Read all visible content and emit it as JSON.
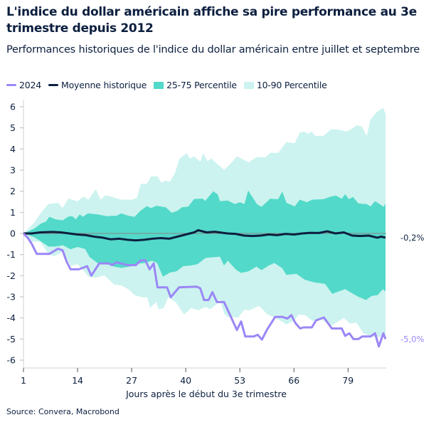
{
  "title": "L'indice du dollar américain affiche sa pire performance au 3e trimestre depuis 2012",
  "subtitle": "Performances historiques de l'indice du dollar américain entre juillet et septembre",
  "source": "Source: Convera, Macrobond",
  "colors": {
    "s2024": "#9b87f5",
    "mean": "#0c1f3f",
    "p2575": "#52d9c9",
    "p1090": "#ccf3ef",
    "zero": "#888888"
  },
  "chart_data": {
    "type": "line",
    "title": "L'indice du dollar américain affiche sa pire performance au 3e trimestre depuis 2012",
    "subtitle": "Performances historiques de l'indice du dollar américain entre juillet et septembre",
    "xlabel": "Jours après le début du 3e trimestre",
    "ylabel": "",
    "xlim": [
      1,
      88
    ],
    "ylim": [
      -6,
      6
    ],
    "xticks": [
      1,
      14,
      27,
      40,
      53,
      66,
      79
    ],
    "yticks": [
      6,
      5,
      4,
      3,
      2,
      1,
      0,
      -1,
      -2,
      -3,
      -4,
      -5,
      -6
    ],
    "grid": false,
    "legend": "top",
    "end_labels": {
      "mean": "-0,2%",
      "s2024": "-5,0%"
    },
    "legend_labels": {
      "s2024": "2024",
      "mean": "Moyenne historique",
      "p2575": "25-75 Percentile",
      "p1090": "10-90 Percentile"
    },
    "bands": {
      "p1090_upper": [
        [
          1,
          0
        ],
        [
          3.5,
          0.5
        ],
        [
          5.3,
          1.0
        ],
        [
          7,
          1.4
        ],
        [
          9.3,
          1.45
        ],
        [
          10.4,
          1.2
        ],
        [
          11.8,
          1.65
        ],
        [
          14,
          1.52
        ],
        [
          15.4,
          1.75
        ],
        [
          16.6,
          1.6
        ],
        [
          18.4,
          2.1
        ],
        [
          19.5,
          1.6
        ],
        [
          20.7,
          1.8
        ],
        [
          22,
          1.75
        ],
        [
          24.4,
          1.6
        ],
        [
          27.2,
          1.6
        ],
        [
          28.3,
          1.7
        ],
        [
          29.2,
          2.35
        ],
        [
          30.6,
          2.35
        ],
        [
          31.7,
          2.7
        ],
        [
          33.2,
          2.7
        ],
        [
          34.2,
          2.4
        ],
        [
          35.1,
          2.5
        ],
        [
          36.2,
          2.45
        ],
        [
          37.4,
          2.85
        ],
        [
          38.5,
          3.55
        ],
        [
          40.2,
          3.8
        ],
        [
          41,
          3.55
        ],
        [
          42,
          3.65
        ],
        [
          43.5,
          3.4
        ],
        [
          44.2,
          3.8
        ],
        [
          45.2,
          3.42
        ],
        [
          46.2,
          3.55
        ],
        [
          47.5,
          3.3
        ],
        [
          49.2,
          3.02
        ],
        [
          50.5,
          3.25
        ],
        [
          52.3,
          3.65
        ],
        [
          55.1,
          3.37
        ],
        [
          57.1,
          3.62
        ],
        [
          59.1,
          3.6
        ],
        [
          60.3,
          3.82
        ],
        [
          62.2,
          3.82
        ],
        [
          64.2,
          4.32
        ],
        [
          66.2,
          4.27
        ],
        [
          67.4,
          4.77
        ],
        [
          68.5,
          4.83
        ],
        [
          69.4,
          4.72
        ],
        [
          70.3,
          4.83
        ],
        [
          71.1,
          4.62
        ],
        [
          73.1,
          4.62
        ],
        [
          74.9,
          4.93
        ],
        [
          76.3,
          4.93
        ],
        [
          78.6,
          4.83
        ],
        [
          79.8,
          4.95
        ],
        [
          81.2,
          5.13
        ],
        [
          82.4,
          5.05
        ],
        [
          83.5,
          4.6
        ],
        [
          84.4,
          5.4
        ],
        [
          85.9,
          5.75
        ],
        [
          87.4,
          5.95
        ],
        [
          88,
          5.67
        ]
      ],
      "p1090_lower": [
        [
          1,
          0
        ],
        [
          3,
          -0.39
        ],
        [
          5,
          -0.39
        ],
        [
          7,
          -0.97
        ],
        [
          8.4,
          -1.08
        ],
        [
          10.5,
          -0.86
        ],
        [
          12.3,
          -1.52
        ],
        [
          14,
          -1.46
        ],
        [
          15.4,
          -1.74
        ],
        [
          16.6,
          -2.05
        ],
        [
          18.4,
          -2.1
        ],
        [
          20.4,
          -1.99
        ],
        [
          22.8,
          -2.42
        ],
        [
          24.5,
          -2.47
        ],
        [
          26.2,
          -2.64
        ],
        [
          27.7,
          -2.92
        ],
        [
          29.7,
          -3.03
        ],
        [
          30.8,
          -3.03
        ],
        [
          31.4,
          -3.53
        ],
        [
          32.9,
          -3.25
        ],
        [
          33.5,
          -3.59
        ],
        [
          34.7,
          -3.53
        ],
        [
          35.8,
          -3.03
        ],
        [
          37.6,
          -3.25
        ],
        [
          39.6,
          -3.84
        ],
        [
          41.3,
          -3.53
        ],
        [
          43,
          -3.64
        ],
        [
          44.8,
          -3.48
        ],
        [
          45.9,
          -3.59
        ],
        [
          47.6,
          -3.33
        ],
        [
          48.2,
          -3.1
        ],
        [
          49.2,
          -3.78
        ],
        [
          50.1,
          -3.95
        ],
        [
          52.6,
          -3.98
        ],
        [
          54.1,
          -3.61
        ],
        [
          55.3,
          -3.64
        ],
        [
          57.6,
          -3.43
        ],
        [
          59.6,
          -3.83
        ],
        [
          62.1,
          -4.05
        ],
        [
          64.2,
          -4.31
        ],
        [
          66.2,
          -4.11
        ],
        [
          67.1,
          -3.83
        ],
        [
          68.8,
          -3.88
        ],
        [
          70.5,
          -4.16
        ],
        [
          72.2,
          -4.0
        ],
        [
          74.9,
          -4.38
        ],
        [
          78,
          -4.0
        ],
        [
          79.5,
          -4.27
        ],
        [
          81,
          -4.22
        ],
        [
          82.7,
          -4.72
        ],
        [
          84.7,
          -4.9
        ],
        [
          86.6,
          -4.9
        ],
        [
          88,
          -4.78
        ]
      ],
      "p2575_upper": [
        [
          1,
          0
        ],
        [
          3.5,
          0.22
        ],
        [
          5.3,
          0.48
        ],
        [
          6.4,
          0.56
        ],
        [
          7.2,
          0.79
        ],
        [
          8.7,
          0.67
        ],
        [
          10.4,
          0.62
        ],
        [
          11.8,
          0.8
        ],
        [
          12.7,
          0.82
        ],
        [
          13.6,
          0.67
        ],
        [
          14.5,
          0.9
        ],
        [
          15.3,
          0.79
        ],
        [
          16.5,
          0.95
        ],
        [
          18.8,
          0.9
        ],
        [
          21.1,
          0.82
        ],
        [
          23.4,
          0.84
        ],
        [
          24.5,
          0.95
        ],
        [
          26.2,
          0.84
        ],
        [
          27.7,
          0.79
        ],
        [
          29.1,
          1.07
        ],
        [
          30.6,
          1.29
        ],
        [
          31.7,
          1.2
        ],
        [
          32.9,
          1.31
        ],
        [
          35.2,
          1.24
        ],
        [
          36.6,
          0.98
        ],
        [
          38,
          1.07
        ],
        [
          39.1,
          1.24
        ],
        [
          40.6,
          1.27
        ],
        [
          42,
          1.63
        ],
        [
          44,
          1.65
        ],
        [
          44.7,
          1.54
        ],
        [
          46.6,
          2.0
        ],
        [
          47.7,
          1.85
        ],
        [
          48.2,
          1.53
        ],
        [
          50.1,
          1.56
        ],
        [
          51.8,
          1.39
        ],
        [
          53,
          1.48
        ],
        [
          54.1,
          1.39
        ],
        [
          55,
          2.03
        ],
        [
          57.1,
          1.39
        ],
        [
          58.2,
          1.26
        ],
        [
          60.3,
          1.64
        ],
        [
          62.2,
          1.62
        ],
        [
          63.2,
          1.98
        ],
        [
          64.2,
          1.45
        ],
        [
          66.2,
          1.28
        ],
        [
          67.4,
          1.6
        ],
        [
          69.1,
          1.48
        ],
        [
          70.4,
          1.6
        ],
        [
          73.1,
          1.62
        ],
        [
          74.9,
          1.75
        ],
        [
          76.1,
          1.79
        ],
        [
          77.5,
          1.64
        ],
        [
          78.3,
          1.86
        ],
        [
          79.2,
          1.62
        ],
        [
          80.2,
          1.73
        ],
        [
          81.5,
          1.42
        ],
        [
          83.5,
          1.39
        ],
        [
          84.4,
          1.28
        ],
        [
          85.5,
          1.53
        ],
        [
          87.6,
          1.26
        ],
        [
          88,
          1.42
        ]
      ],
      "p2575_lower": [
        [
          1,
          0
        ],
        [
          3.5,
          -0.17
        ],
        [
          5.3,
          -0.39
        ],
        [
          7,
          -0.62
        ],
        [
          8.7,
          -0.62
        ],
        [
          10.5,
          -0.56
        ],
        [
          12.3,
          -0.75
        ],
        [
          14,
          -0.64
        ],
        [
          15.8,
          -0.73
        ],
        [
          16.9,
          -1.12
        ],
        [
          18.8,
          -1.4
        ],
        [
          21.1,
          -1.46
        ],
        [
          22.8,
          -1.57
        ],
        [
          24.5,
          -1.63
        ],
        [
          26.5,
          -1.57
        ],
        [
          28.5,
          -1.43
        ],
        [
          30.2,
          -1.4
        ],
        [
          31.9,
          -1.29
        ],
        [
          33.1,
          -1.4
        ],
        [
          34.5,
          -2.05
        ],
        [
          36.2,
          -1.85
        ],
        [
          37.7,
          -1.8
        ],
        [
          39.4,
          -1.55
        ],
        [
          41.1,
          -1.52
        ],
        [
          42.8,
          -1.46
        ],
        [
          44.8,
          -1.16
        ],
        [
          48.2,
          -1.1
        ],
        [
          49.2,
          -1.52
        ],
        [
          50.1,
          -1.29
        ],
        [
          52.1,
          -1.72
        ],
        [
          53.3,
          -1.87
        ],
        [
          55,
          -1.8
        ],
        [
          57,
          -1.57
        ],
        [
          58.2,
          -1.74
        ],
        [
          59.9,
          -1.52
        ],
        [
          61.3,
          -1.4
        ],
        [
          63.2,
          -1.65
        ],
        [
          64.2,
          -1.96
        ],
        [
          66.6,
          -1.91
        ],
        [
          68.6,
          -2.19
        ],
        [
          70.9,
          -2.32
        ],
        [
          73.5,
          -2.39
        ],
        [
          75.2,
          -2.86
        ],
        [
          76.7,
          -2.75
        ],
        [
          78.3,
          -2.64
        ],
        [
          79.8,
          -2.81
        ],
        [
          81.5,
          -3.0
        ],
        [
          83.3,
          -3.15
        ],
        [
          84.7,
          -2.96
        ],
        [
          86.1,
          -2.92
        ],
        [
          87.4,
          -2.64
        ],
        [
          88,
          -2.75
        ]
      ]
    },
    "series": [
      {
        "name": "Moyenne historique",
        "points": [
          [
            1,
            0
          ],
          [
            3,
            0
          ],
          [
            5,
            0.05
          ],
          [
            8,
            0.07
          ],
          [
            10,
            0.05
          ],
          [
            12,
            0
          ],
          [
            14,
            -0.05
          ],
          [
            16,
            -0.08
          ],
          [
            18,
            -0.15
          ],
          [
            20,
            -0.2
          ],
          [
            22,
            -0.28
          ],
          [
            24,
            -0.25
          ],
          [
            26,
            -0.3
          ],
          [
            28,
            -0.33
          ],
          [
            30,
            -0.3
          ],
          [
            32,
            -0.25
          ],
          [
            34,
            -0.22
          ],
          [
            36,
            -0.25
          ],
          [
            38,
            -0.15
          ],
          [
            40,
            -0.05
          ],
          [
            42,
            0.05
          ],
          [
            43,
            0.15
          ],
          [
            45,
            0.05
          ],
          [
            47,
            0.08
          ],
          [
            50,
            0.0
          ],
          [
            52,
            -0.02
          ],
          [
            54,
            -0.1
          ],
          [
            56,
            -0.12
          ],
          [
            58,
            -0.1
          ],
          [
            60,
            -0.05
          ],
          [
            62,
            -0.08
          ],
          [
            64,
            -0.02
          ],
          [
            66,
            -0.05
          ],
          [
            68,
            0
          ],
          [
            70,
            0.03
          ],
          [
            72,
            0.02
          ],
          [
            74,
            0.1
          ],
          [
            76,
            0.0
          ],
          [
            78,
            0.05
          ],
          [
            80,
            -0.1
          ],
          [
            82,
            -0.12
          ],
          [
            84,
            -0.1
          ],
          [
            86,
            -0.2
          ],
          [
            87,
            -0.15
          ],
          [
            88,
            -0.2
          ]
        ]
      },
      {
        "name": "2024",
        "points": [
          [
            1,
            0
          ],
          [
            2,
            -0.2
          ],
          [
            3,
            -0.5
          ],
          [
            4.2,
            -0.97
          ],
          [
            7.2,
            -0.97
          ],
          [
            9.3,
            -0.72
          ],
          [
            10.4,
            -0.8
          ],
          [
            11.3,
            -1.3
          ],
          [
            12.3,
            -1.7
          ],
          [
            14.3,
            -1.7
          ],
          [
            16.3,
            -1.55
          ],
          [
            17.3,
            -2.0
          ],
          [
            19.2,
            -1.42
          ],
          [
            21.5,
            -1.42
          ],
          [
            22.3,
            -1.5
          ],
          [
            23.3,
            -1.37
          ],
          [
            26.1,
            -1.5
          ],
          [
            28,
            -1.5
          ],
          [
            29.2,
            -1.27
          ],
          [
            30.3,
            -1.27
          ],
          [
            31.3,
            -1.7
          ],
          [
            32.3,
            -1.42
          ],
          [
            33.2,
            -2.55
          ],
          [
            35.5,
            -2.55
          ],
          [
            36.4,
            -3.02
          ],
          [
            38.4,
            -2.55
          ],
          [
            42.6,
            -2.52
          ],
          [
            43.5,
            -2.6
          ],
          [
            44.4,
            -3.15
          ],
          [
            45.5,
            -3.15
          ],
          [
            46.4,
            -2.78
          ],
          [
            47.5,
            -3.25
          ],
          [
            49.2,
            -3.25
          ],
          [
            52.3,
            -4.57
          ],
          [
            53.3,
            -4.17
          ],
          [
            54.3,
            -4.88
          ],
          [
            56.3,
            -4.88
          ],
          [
            57.3,
            -4.8
          ],
          [
            58.3,
            -5.03
          ],
          [
            59.5,
            -4.57
          ],
          [
            61.5,
            -3.95
          ],
          [
            63.2,
            -3.95
          ],
          [
            64.4,
            -4.03
          ],
          [
            65.4,
            -3.87
          ],
          [
            66.3,
            -4.23
          ],
          [
            67.5,
            -4.5
          ],
          [
            68.3,
            -4.45
          ],
          [
            70.3,
            -4.45
          ],
          [
            71.3,
            -4.12
          ],
          [
            73.2,
            -3.98
          ],
          [
            75.1,
            -4.5
          ],
          [
            77.5,
            -4.5
          ],
          [
            78.3,
            -4.85
          ],
          [
            79.3,
            -4.73
          ],
          [
            80.3,
            -5.0
          ],
          [
            81.5,
            -5.0
          ],
          [
            82.4,
            -4.88
          ],
          [
            84.4,
            -4.88
          ],
          [
            85.5,
            -4.73
          ],
          [
            86.4,
            -5.35
          ],
          [
            87.5,
            -4.73
          ],
          [
            88,
            -5.0
          ]
        ]
      }
    ]
  }
}
